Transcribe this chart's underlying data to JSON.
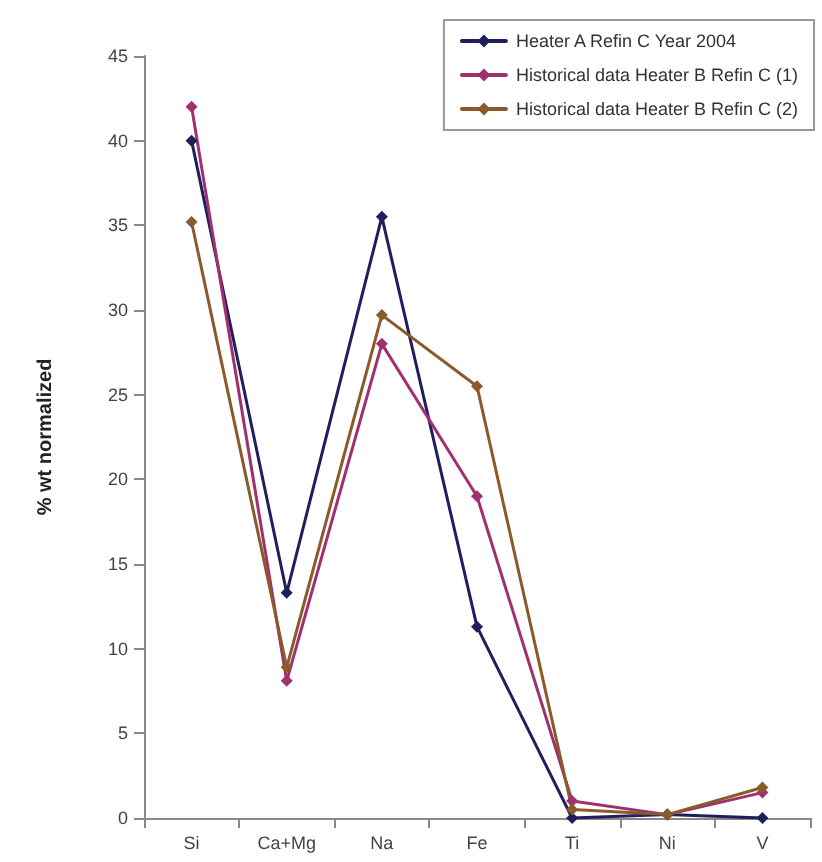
{
  "chart_data": {
    "type": "line",
    "ylabel": "% wt normalized",
    "categories": [
      "Si",
      "Ca+Mg",
      "Na",
      "Fe",
      "Ti",
      "Ni",
      "V"
    ],
    "series": [
      {
        "name": "Heater A Refin C Year 2004",
        "color": "#1f1f5e",
        "values": [
          40,
          13.3,
          35.5,
          11.3,
          0,
          0.2,
          0
        ]
      },
      {
        "name": "Historical data Heater B Refin C (1)",
        "color": "#a0306e",
        "values": [
          42,
          8.1,
          28,
          19,
          1,
          0.2,
          1.5
        ]
      },
      {
        "name": "Historical data Heater B Refin C (2)",
        "color": "#8a5a2a",
        "values": [
          35.2,
          8.9,
          29.7,
          25.5,
          0.5,
          0.2,
          1.8
        ]
      }
    ],
    "ylim": [
      0,
      45
    ],
    "yticks": [
      0,
      5,
      10,
      15,
      20,
      25,
      30,
      35,
      40,
      45
    ],
    "grid": false,
    "legend": "top right",
    "marker": "diamond",
    "line_style": "solid"
  }
}
